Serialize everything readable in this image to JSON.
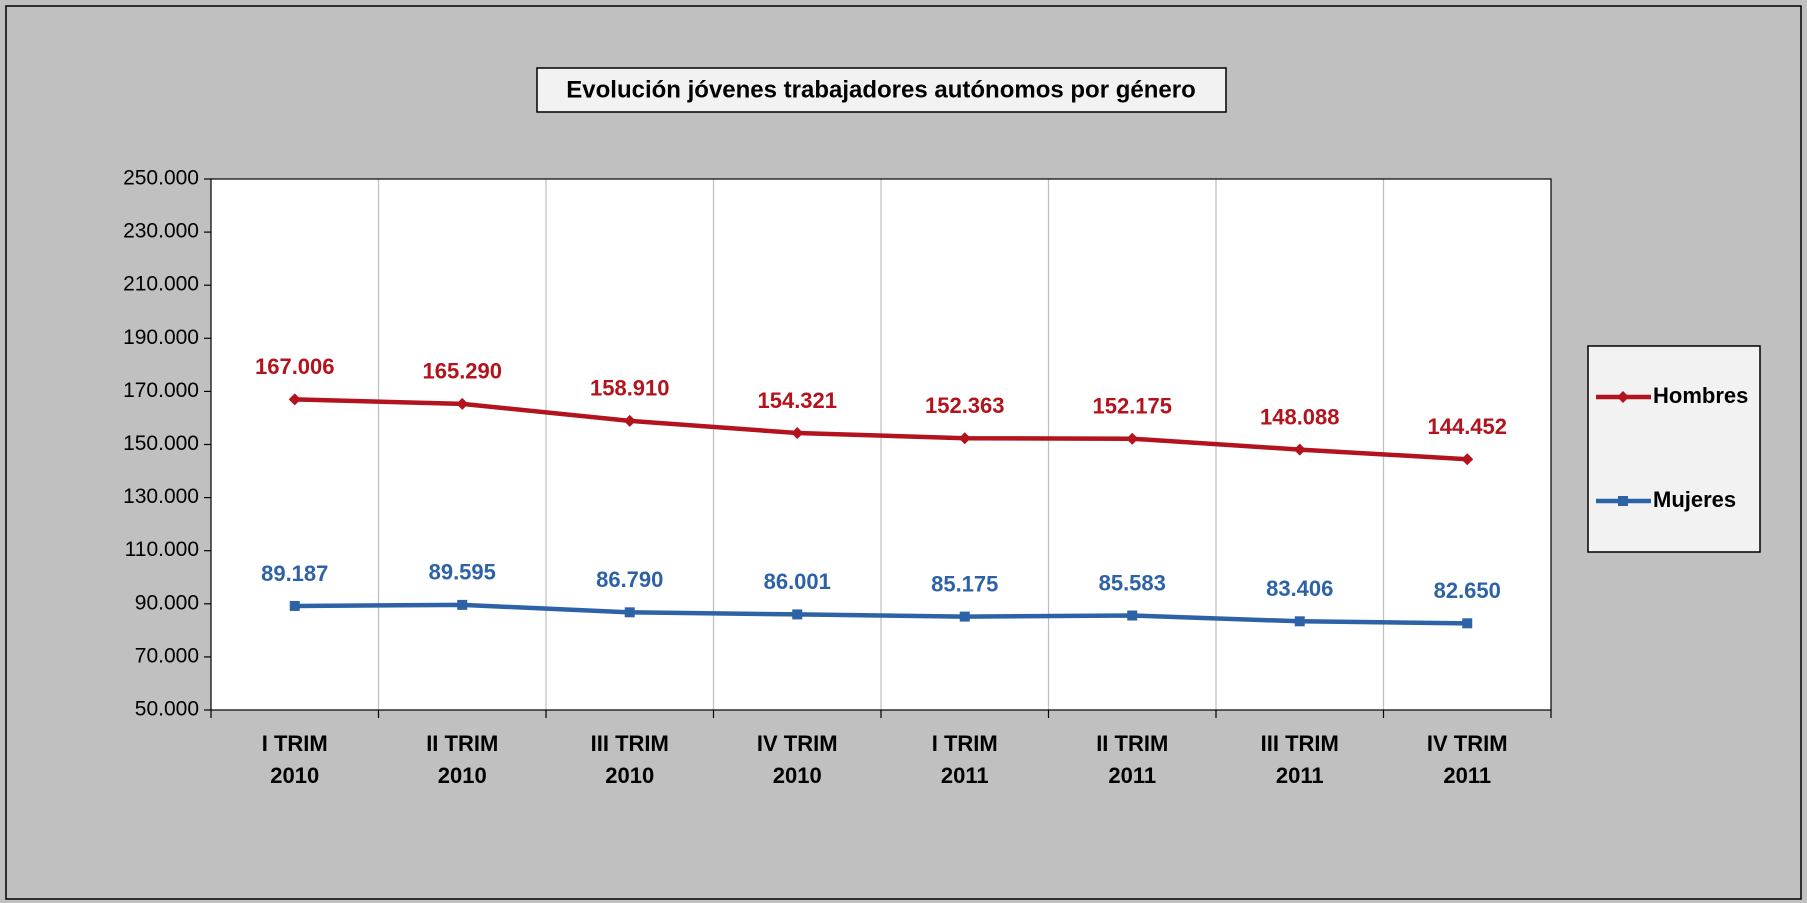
{
  "chart_data": {
    "type": "line",
    "title": "Evolución  jóvenes trabajadores autónomos por género",
    "categories": [
      "I TRIM 2010",
      "II TRIM 2010",
      "III TRIM 2010",
      "IV TRIM 2010",
      "I TRIM 2011",
      "II TRIM 2011",
      "III TRIM 2011",
      "IV TRIM 2011"
    ],
    "series": [
      {
        "name": "Hombres",
        "color": "#b3131c",
        "marker": "diamond",
        "values": [
          167006,
          165290,
          158910,
          154321,
          152363,
          152175,
          148088,
          144452
        ],
        "value_labels": [
          "167.006",
          "165.290",
          "158.910",
          "154.321",
          "152.363",
          "152.175",
          "148.088",
          "144.452"
        ]
      },
      {
        "name": "Mujeres",
        "color": "#2e62a6",
        "marker": "square",
        "values": [
          89187,
          89595,
          86790,
          86001,
          85175,
          85583,
          83406,
          82650
        ],
        "value_labels": [
          "89.187",
          "89.595",
          "86.790",
          "86.001",
          "85.175",
          "85.583",
          "83.406",
          "82.650"
        ]
      }
    ],
    "ylim": [
      50000,
      250000
    ],
    "yticks": [
      {
        "value": 50000,
        "label": "50.000"
      },
      {
        "value": 70000,
        "label": "70.000"
      },
      {
        "value": 90000,
        "label": "90.000"
      },
      {
        "value": 110000,
        "label": "110.000"
      },
      {
        "value": 130000,
        "label": "130.000"
      },
      {
        "value": 150000,
        "label": "150.000"
      },
      {
        "value": 170000,
        "label": "170.000"
      },
      {
        "value": 190000,
        "label": "190.000"
      },
      {
        "value": 210000,
        "label": "210.000"
      },
      {
        "value": 230000,
        "label": "230.000"
      },
      {
        "value": 250000,
        "label": "250.000"
      }
    ],
    "grid": "x",
    "legend": "right"
  }
}
